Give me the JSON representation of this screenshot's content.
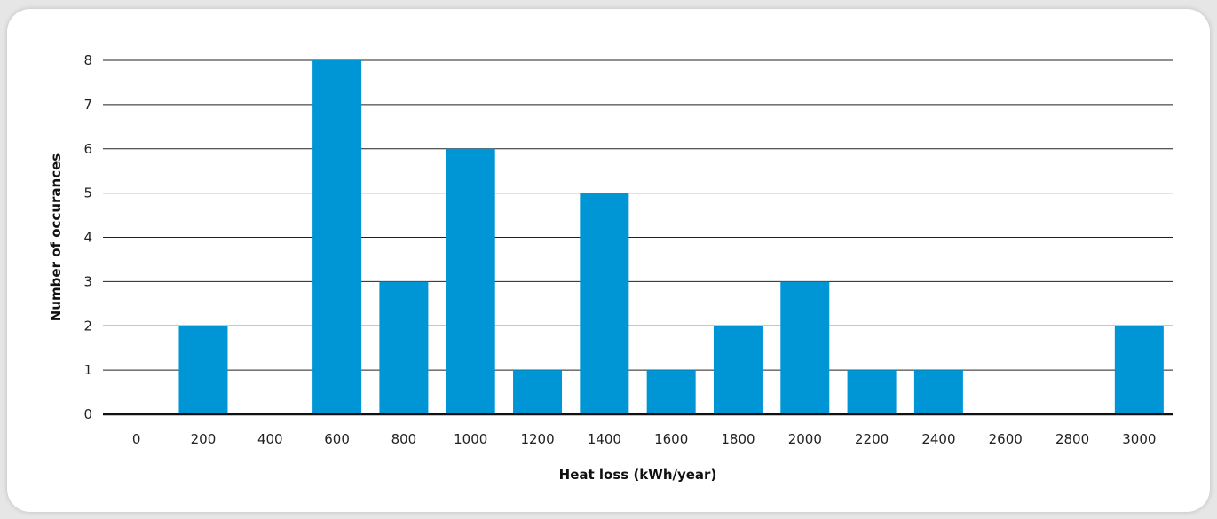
{
  "chart_data": {
    "type": "bar",
    "categories": [
      "0",
      "200",
      "400",
      "600",
      "800",
      "1000",
      "1200",
      "1400",
      "1600",
      "1800",
      "2000",
      "2200",
      "2400",
      "2600",
      "2800",
      "3000"
    ],
    "values": [
      0,
      2,
      0,
      8,
      3,
      6,
      1,
      5,
      1,
      2,
      3,
      1,
      1,
      0,
      0,
      2
    ],
    "xlabel": "Heat loss (kWh/year)",
    "ylabel": "Number of occurances",
    "ylim": [
      0,
      8
    ],
    "yticks": [
      "0",
      "1",
      "2",
      "3",
      "4",
      "5",
      "6",
      "7",
      "8"
    ],
    "grid": true,
    "bar_color": "#0096d6"
  }
}
